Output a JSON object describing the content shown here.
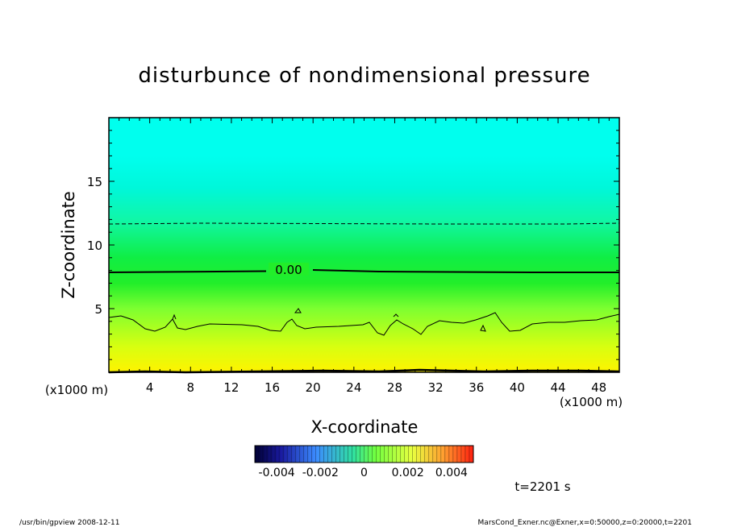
{
  "chart_data": {
    "type": "heatmap",
    "title": "disturbunce of nondimensional pressure",
    "xlabel": "X-coordinate",
    "ylabel": "Z-coordinate",
    "x_unit_left": "(x1000 m)",
    "x_unit_right": "(x1000 m)",
    "xlim": [
      0,
      50
    ],
    "ylim": [
      0,
      20
    ],
    "x_ticks": [
      4,
      8,
      12,
      16,
      20,
      24,
      28,
      32,
      36,
      40,
      44,
      48
    ],
    "y_ticks": [
      5,
      10,
      15
    ],
    "contours": [
      {
        "label": "0.00",
        "style": "solid-thick",
        "level_z": 7.9
      },
      {
        "label": "",
        "style": "dashed",
        "level_z": 11.6
      },
      {
        "label": "",
        "style": "solid-thin",
        "level_z": 4.0
      }
    ],
    "colorbar": {
      "tick_labels": [
        "-0.004",
        "-0.002",
        "0",
        "0.002",
        "0.004"
      ],
      "range": [
        -0.005,
        0.005
      ]
    },
    "color_gradient_by_z": [
      {
        "z": 0,
        "color": "#fff300"
      },
      {
        "z": 2,
        "color": "#d8ff10"
      },
      {
        "z": 5,
        "color": "#7dff30"
      },
      {
        "z": 7,
        "color": "#22ee2a"
      },
      {
        "z": 9,
        "color": "#10ee44"
      },
      {
        "z": 12,
        "color": "#10f7a8"
      },
      {
        "z": 14.5,
        "color": "#00f7da"
      },
      {
        "z": 17,
        "color": "#00ffee"
      },
      {
        "z": 20,
        "color": "#00ffee"
      }
    ]
  },
  "time_label": "t=2201 s",
  "footer": {
    "left": "/usr/bin/gpview   2008-12-11",
    "right": "MarsCond_Exner.nc@Exner,x=0:50000,z=0:20000,t=2201"
  }
}
